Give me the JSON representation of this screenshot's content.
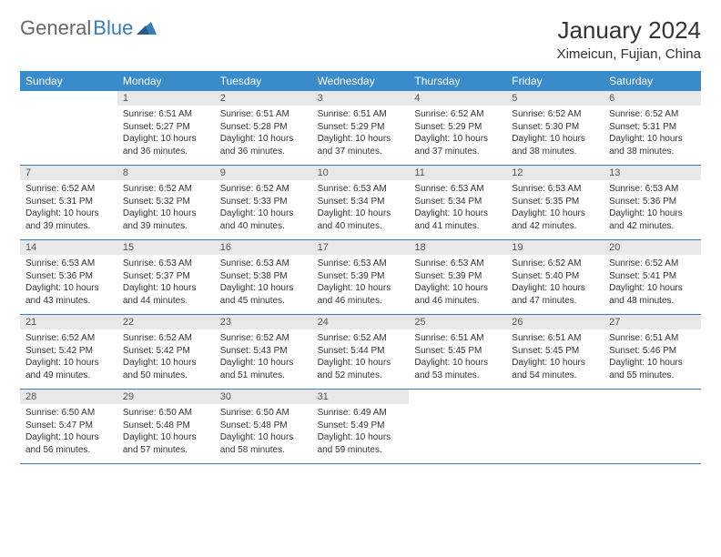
{
  "logo": {
    "text_gray": "General",
    "text_blue": "Blue"
  },
  "title": "January 2024",
  "location": "Ximeicun, Fujian, China",
  "colors": {
    "header_bg": "#3a8bc9",
    "header_text": "#ffffff",
    "day_num_bg": "#e8e8e8",
    "border": "#3a7db5",
    "logo_gray": "#666666",
    "logo_blue": "#3a7db5"
  },
  "day_names": [
    "Sunday",
    "Monday",
    "Tuesday",
    "Wednesday",
    "Thursday",
    "Friday",
    "Saturday"
  ],
  "start_offset": 1,
  "days": [
    {
      "n": 1,
      "sr": "6:51 AM",
      "ss": "5:27 PM",
      "dl": "10 hours and 36 minutes."
    },
    {
      "n": 2,
      "sr": "6:51 AM",
      "ss": "5:28 PM",
      "dl": "10 hours and 36 minutes."
    },
    {
      "n": 3,
      "sr": "6:51 AM",
      "ss": "5:29 PM",
      "dl": "10 hours and 37 minutes."
    },
    {
      "n": 4,
      "sr": "6:52 AM",
      "ss": "5:29 PM",
      "dl": "10 hours and 37 minutes."
    },
    {
      "n": 5,
      "sr": "6:52 AM",
      "ss": "5:30 PM",
      "dl": "10 hours and 38 minutes."
    },
    {
      "n": 6,
      "sr": "6:52 AM",
      "ss": "5:31 PM",
      "dl": "10 hours and 38 minutes."
    },
    {
      "n": 7,
      "sr": "6:52 AM",
      "ss": "5:31 PM",
      "dl": "10 hours and 39 minutes."
    },
    {
      "n": 8,
      "sr": "6:52 AM",
      "ss": "5:32 PM",
      "dl": "10 hours and 39 minutes."
    },
    {
      "n": 9,
      "sr": "6:52 AM",
      "ss": "5:33 PM",
      "dl": "10 hours and 40 minutes."
    },
    {
      "n": 10,
      "sr": "6:53 AM",
      "ss": "5:34 PM",
      "dl": "10 hours and 40 minutes."
    },
    {
      "n": 11,
      "sr": "6:53 AM",
      "ss": "5:34 PM",
      "dl": "10 hours and 41 minutes."
    },
    {
      "n": 12,
      "sr": "6:53 AM",
      "ss": "5:35 PM",
      "dl": "10 hours and 42 minutes."
    },
    {
      "n": 13,
      "sr": "6:53 AM",
      "ss": "5:36 PM",
      "dl": "10 hours and 42 minutes."
    },
    {
      "n": 14,
      "sr": "6:53 AM",
      "ss": "5:36 PM",
      "dl": "10 hours and 43 minutes."
    },
    {
      "n": 15,
      "sr": "6:53 AM",
      "ss": "5:37 PM",
      "dl": "10 hours and 44 minutes."
    },
    {
      "n": 16,
      "sr": "6:53 AM",
      "ss": "5:38 PM",
      "dl": "10 hours and 45 minutes."
    },
    {
      "n": 17,
      "sr": "6:53 AM",
      "ss": "5:39 PM",
      "dl": "10 hours and 46 minutes."
    },
    {
      "n": 18,
      "sr": "6:53 AM",
      "ss": "5:39 PM",
      "dl": "10 hours and 46 minutes."
    },
    {
      "n": 19,
      "sr": "6:52 AM",
      "ss": "5:40 PM",
      "dl": "10 hours and 47 minutes."
    },
    {
      "n": 20,
      "sr": "6:52 AM",
      "ss": "5:41 PM",
      "dl": "10 hours and 48 minutes."
    },
    {
      "n": 21,
      "sr": "6:52 AM",
      "ss": "5:42 PM",
      "dl": "10 hours and 49 minutes."
    },
    {
      "n": 22,
      "sr": "6:52 AM",
      "ss": "5:42 PM",
      "dl": "10 hours and 50 minutes."
    },
    {
      "n": 23,
      "sr": "6:52 AM",
      "ss": "5:43 PM",
      "dl": "10 hours and 51 minutes."
    },
    {
      "n": 24,
      "sr": "6:52 AM",
      "ss": "5:44 PM",
      "dl": "10 hours and 52 minutes."
    },
    {
      "n": 25,
      "sr": "6:51 AM",
      "ss": "5:45 PM",
      "dl": "10 hours and 53 minutes."
    },
    {
      "n": 26,
      "sr": "6:51 AM",
      "ss": "5:45 PM",
      "dl": "10 hours and 54 minutes."
    },
    {
      "n": 27,
      "sr": "6:51 AM",
      "ss": "5:46 PM",
      "dl": "10 hours and 55 minutes."
    },
    {
      "n": 28,
      "sr": "6:50 AM",
      "ss": "5:47 PM",
      "dl": "10 hours and 56 minutes."
    },
    {
      "n": 29,
      "sr": "6:50 AM",
      "ss": "5:48 PM",
      "dl": "10 hours and 57 minutes."
    },
    {
      "n": 30,
      "sr": "6:50 AM",
      "ss": "5:48 PM",
      "dl": "10 hours and 58 minutes."
    },
    {
      "n": 31,
      "sr": "6:49 AM",
      "ss": "5:49 PM",
      "dl": "10 hours and 59 minutes."
    }
  ],
  "labels": {
    "sunrise": "Sunrise:",
    "sunset": "Sunset:",
    "daylight": "Daylight:"
  }
}
